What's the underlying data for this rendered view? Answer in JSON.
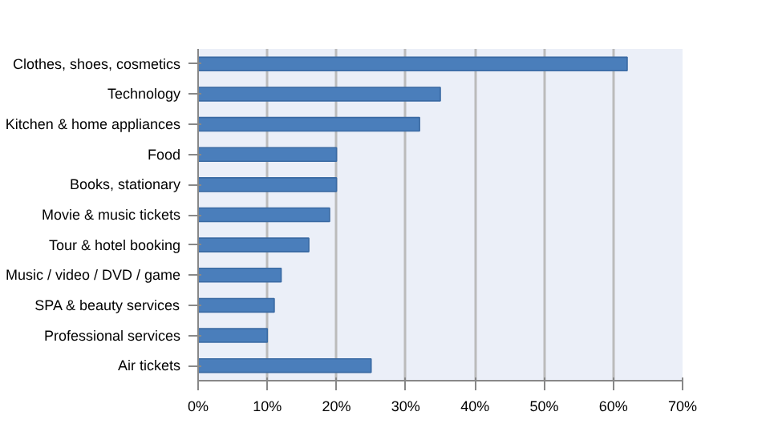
{
  "chart_data": {
    "type": "bar",
    "orientation": "horizontal",
    "categories": [
      "Clothes, shoes, cosmetics",
      "Technology",
      "Kitchen & home appliances",
      "Food",
      "Books, stationary",
      "Movie & music tickets",
      "Tour & hotel booking",
      "Music / video / DVD / game",
      "SPA & beauty services",
      "Professional services",
      "Air tickets"
    ],
    "values": [
      62,
      35,
      32,
      20,
      20,
      19,
      16,
      12,
      11,
      10,
      25
    ],
    "color": "#4a7ebb",
    "xlim": [
      0,
      70
    ],
    "xticks": [
      {
        "value": 0,
        "label": "0%"
      },
      {
        "value": 10,
        "label": "10%"
      },
      {
        "value": 20,
        "label": "20%"
      },
      {
        "value": 30,
        "label": "30%"
      },
      {
        "value": 40,
        "label": "40%"
      },
      {
        "value": 50,
        "label": "50%"
      },
      {
        "value": 60,
        "label": "60%"
      },
      {
        "value": 70,
        "label": "70%"
      }
    ],
    "grid": "x"
  }
}
